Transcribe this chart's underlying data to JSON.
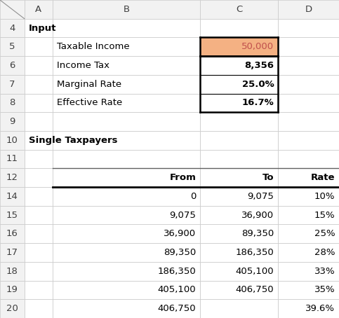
{
  "fig_width": 4.83,
  "fig_height": 4.54,
  "dpi": 100,
  "background_color": "#ffffff",
  "grid_color": "#c8c8c8",
  "header_bg": "#f2f2f2",
  "highlight_bg": "#f4b183",
  "highlight_text": "#c0504d",
  "col_starts": [
    0.0,
    0.072,
    0.155,
    0.59,
    0.82
  ],
  "col_ends": [
    0.072,
    0.155,
    0.59,
    0.82,
    1.0
  ],
  "col_labels": [
    "",
    "A",
    "B",
    "C",
    "D"
  ],
  "display_rows": [
    {
      "row_label": "4",
      "is_header_row": false
    },
    {
      "row_label": "5",
      "is_header_row": false
    },
    {
      "row_label": "6",
      "is_header_row": false
    },
    {
      "row_label": "7",
      "is_header_row": false
    },
    {
      "row_label": "8",
      "is_header_row": false
    },
    {
      "row_label": "9",
      "is_header_row": false
    },
    {
      "row_label": "10",
      "is_header_row": false
    },
    {
      "row_label": "11",
      "is_header_row": false
    },
    {
      "row_label": "12",
      "is_header_row": true
    },
    {
      "row_label": "14",
      "is_header_row": false
    },
    {
      "row_label": "15",
      "is_header_row": false
    },
    {
      "row_label": "16",
      "is_header_row": false
    },
    {
      "row_label": "17",
      "is_header_row": false
    },
    {
      "row_label": "18",
      "is_header_row": false
    },
    {
      "row_label": "19",
      "is_header_row": false
    },
    {
      "row_label": "20",
      "is_header_row": false
    }
  ],
  "cell_data": {
    "4": [
      {
        "col": 1,
        "text": "Input",
        "bold": true,
        "align": "left",
        "color": "#000000"
      }
    ],
    "5": [
      {
        "col": 2,
        "text": "Taxable Income",
        "bold": false,
        "align": "left",
        "color": "#000000"
      },
      {
        "col": 3,
        "text": "50,000",
        "bold": false,
        "align": "right",
        "color": "#c0504d",
        "bg": "#f4b183"
      }
    ],
    "6": [
      {
        "col": 2,
        "text": "Income Tax",
        "bold": false,
        "align": "left",
        "color": "#000000"
      },
      {
        "col": 3,
        "text": "8,356",
        "bold": true,
        "align": "right",
        "color": "#000000"
      }
    ],
    "7": [
      {
        "col": 2,
        "text": "Marginal Rate",
        "bold": false,
        "align": "left",
        "color": "#000000"
      },
      {
        "col": 3,
        "text": "25.0%",
        "bold": true,
        "align": "right",
        "color": "#000000"
      }
    ],
    "8": [
      {
        "col": 2,
        "text": "Effective Rate",
        "bold": false,
        "align": "left",
        "color": "#000000"
      },
      {
        "col": 3,
        "text": "16.7%",
        "bold": true,
        "align": "right",
        "color": "#000000"
      }
    ],
    "9": [],
    "10": [
      {
        "col": 1,
        "text": "Single Taxpayers",
        "bold": true,
        "align": "left",
        "color": "#000000"
      }
    ],
    "11": [],
    "12": [
      {
        "col": 2,
        "text": "From",
        "bold": true,
        "align": "right",
        "color": "#000000"
      },
      {
        "col": 3,
        "text": "To",
        "bold": true,
        "align": "right",
        "color": "#000000"
      },
      {
        "col": 4,
        "text": "Rate",
        "bold": true,
        "align": "right",
        "color": "#000000"
      }
    ],
    "14": [
      {
        "col": 2,
        "text": "0",
        "bold": false,
        "align": "right",
        "color": "#000000"
      },
      {
        "col": 3,
        "text": "9,075",
        "bold": false,
        "align": "right",
        "color": "#000000"
      },
      {
        "col": 4,
        "text": "10%",
        "bold": false,
        "align": "right",
        "color": "#000000"
      }
    ],
    "15": [
      {
        "col": 2,
        "text": "9,075",
        "bold": false,
        "align": "right",
        "color": "#000000"
      },
      {
        "col": 3,
        "text": "36,900",
        "bold": false,
        "align": "right",
        "color": "#000000"
      },
      {
        "col": 4,
        "text": "15%",
        "bold": false,
        "align": "right",
        "color": "#000000"
      }
    ],
    "16": [
      {
        "col": 2,
        "text": "36,900",
        "bold": false,
        "align": "right",
        "color": "#000000"
      },
      {
        "col": 3,
        "text": "89,350",
        "bold": false,
        "align": "right",
        "color": "#000000"
      },
      {
        "col": 4,
        "text": "25%",
        "bold": false,
        "align": "right",
        "color": "#000000"
      }
    ],
    "17": [
      {
        "col": 2,
        "text": "89,350",
        "bold": false,
        "align": "right",
        "color": "#000000"
      },
      {
        "col": 3,
        "text": "186,350",
        "bold": false,
        "align": "right",
        "color": "#000000"
      },
      {
        "col": 4,
        "text": "28%",
        "bold": false,
        "align": "right",
        "color": "#000000"
      }
    ],
    "18": [
      {
        "col": 2,
        "text": "186,350",
        "bold": false,
        "align": "right",
        "color": "#000000"
      },
      {
        "col": 3,
        "text": "405,100",
        "bold": false,
        "align": "right",
        "color": "#000000"
      },
      {
        "col": 4,
        "text": "33%",
        "bold": false,
        "align": "right",
        "color": "#000000"
      }
    ],
    "19": [
      {
        "col": 2,
        "text": "405,100",
        "bold": false,
        "align": "right",
        "color": "#000000"
      },
      {
        "col": 3,
        "text": "406,750",
        "bold": false,
        "align": "right",
        "color": "#000000"
      },
      {
        "col": 4,
        "text": "35%",
        "bold": false,
        "align": "right",
        "color": "#000000"
      }
    ],
    "20": [
      {
        "col": 2,
        "text": "406,750",
        "bold": false,
        "align": "right",
        "color": "#000000"
      },
      {
        "col": 4,
        "text": "39.6%",
        "bold": false,
        "align": "right",
        "color": "#000000"
      }
    ]
  },
  "fontsize": 9.5
}
